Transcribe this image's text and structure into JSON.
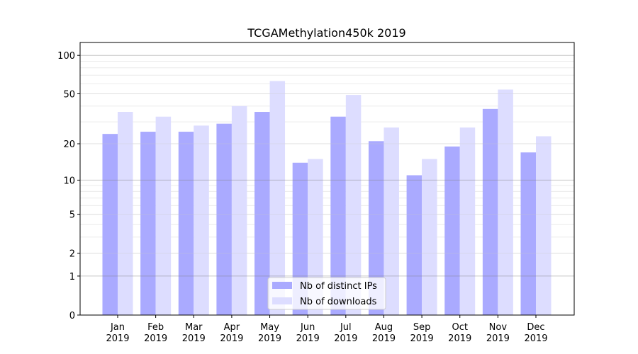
{
  "chart_data": {
    "type": "bar",
    "title": "TCGAMethylation450k 2019",
    "xlabel": "",
    "ylabel": "",
    "yscale": "log10(v+1)",
    "ylim": [
      0,
      126
    ],
    "yticks": [
      0,
      1,
      2,
      5,
      10,
      20,
      50,
      100
    ],
    "ytick_labels": [
      "0",
      "1",
      "2",
      "5",
      "10",
      "20",
      "50",
      "100"
    ],
    "grid": true,
    "legend_position": "lower-center",
    "categories": [
      {
        "month": "Jan",
        "year": "2019"
      },
      {
        "month": "Feb",
        "year": "2019"
      },
      {
        "month": "Mar",
        "year": "2019"
      },
      {
        "month": "Apr",
        "year": "2019"
      },
      {
        "month": "May",
        "year": "2019"
      },
      {
        "month": "Jun",
        "year": "2019"
      },
      {
        "month": "Jul",
        "year": "2019"
      },
      {
        "month": "Aug",
        "year": "2019"
      },
      {
        "month": "Sep",
        "year": "2019"
      },
      {
        "month": "Oct",
        "year": "2019"
      },
      {
        "month": "Nov",
        "year": "2019"
      },
      {
        "month": "Dec",
        "year": "2019"
      }
    ],
    "series": [
      {
        "name": "Nb of distinct IPs",
        "color": "#aaaaff",
        "values": [
          24,
          25,
          25,
          29,
          36,
          14,
          33,
          21,
          11,
          19,
          38,
          17
        ]
      },
      {
        "name": "Nb of downloads",
        "color": "#ddddff",
        "values": [
          36,
          33,
          28,
          40,
          63,
          15,
          49,
          27,
          15,
          27,
          54,
          23
        ]
      }
    ]
  }
}
